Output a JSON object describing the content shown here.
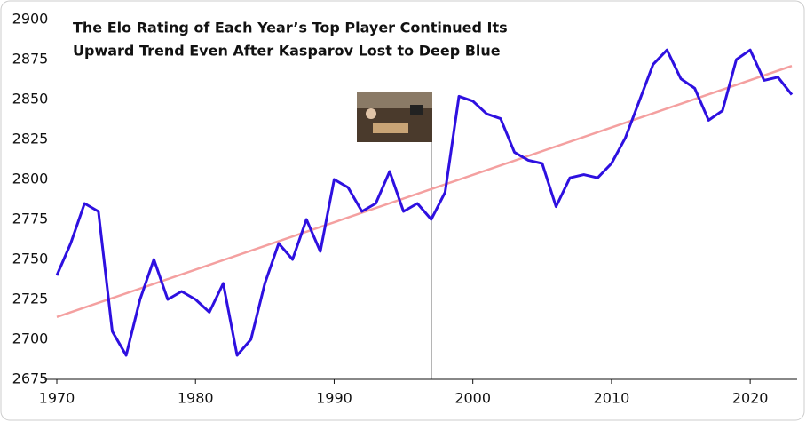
{
  "chart_data": {
    "type": "line",
    "title": [
      "The Elo Rating of Each Year’s Top Player Continued Its",
      "Upward Trend Even After Kasparov Lost to Deep Blue"
    ],
    "x": [
      1970,
      1971,
      1972,
      1973,
      1974,
      1975,
      1976,
      1977,
      1978,
      1979,
      1980,
      1981,
      1982,
      1983,
      1984,
      1985,
      1986,
      1987,
      1988,
      1989,
      1990,
      1991,
      1992,
      1993,
      1994,
      1995,
      1996,
      1997,
      1998,
      1999,
      2000,
      2001,
      2002,
      2003,
      2004,
      2005,
      2006,
      2007,
      2008,
      2009,
      2010,
      2011,
      2012,
      2013,
      2014,
      2015,
      2016,
      2017,
      2018,
      2019,
      2020,
      2021,
      2022,
      2023
    ],
    "series": [
      {
        "color": "#2e10e0",
        "values": [
          2740,
          2760,
          2785,
          2780,
          2705,
          2690,
          2725,
          2750,
          2725,
          2730,
          2725,
          2717,
          2735,
          2690,
          2700,
          2735,
          2760,
          2750,
          2775,
          2755,
          2800,
          2795,
          2780,
          2785,
          2805,
          2780,
          2785,
          2775,
          2792,
          2852,
          2849,
          2841,
          2838,
          2817,
          2812,
          2810,
          2783,
          2801,
          2803,
          2801,
          2810,
          2826,
          2849,
          2872,
          2881,
          2863,
          2857,
          2837,
          2843,
          2875,
          2881,
          2862,
          2864,
          2853
        ]
      }
    ],
    "trend": {
      "x": [
        1970,
        2023
      ],
      "values": [
        2714,
        2871
      ],
      "color": "#f4a0a0"
    },
    "marker_x": 1997,
    "xlim": [
      1970,
      2023
    ],
    "xticks": [
      1970,
      1980,
      1990,
      2000,
      2010,
      2020
    ],
    "ylim": [
      2675,
      2900
    ],
    "yticks": [
      2675,
      2700,
      2725,
      2750,
      2775,
      2800,
      2825,
      2850,
      2875,
      2900
    ]
  }
}
